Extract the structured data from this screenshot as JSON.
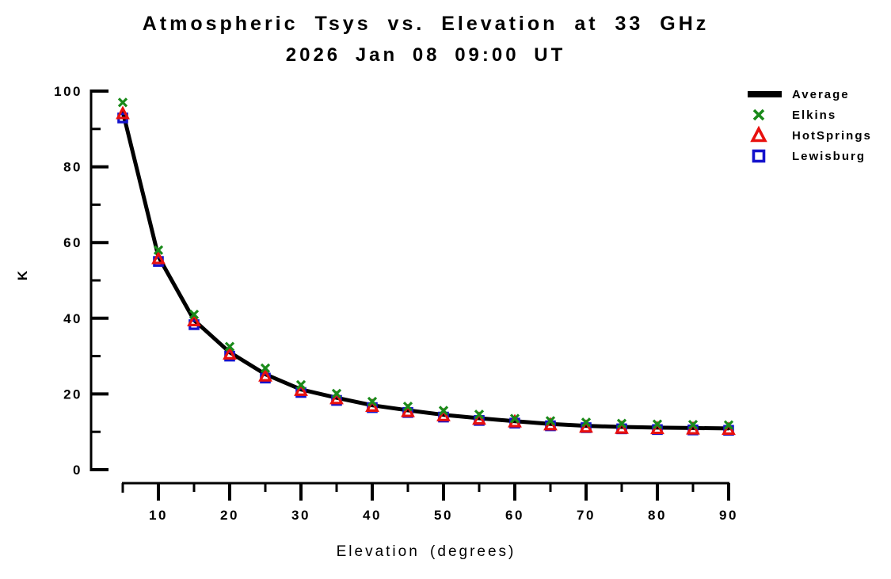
{
  "page": {
    "background": "#FFFFFF",
    "text_color": "#000000"
  },
  "chart_data": {
    "type": "line",
    "title": "Atmospheric Tsys vs. Elevation at 33 GHz",
    "subtitle": "2026 Jan 08 09:00 UT",
    "xlabel": "Elevation (degrees)",
    "ylabel": "K",
    "xlim": [
      5,
      90
    ],
    "ylim": [
      0,
      100
    ],
    "x_major_ticks": [
      10,
      20,
      30,
      40,
      50,
      60,
      70,
      80,
      90
    ],
    "x_minor_ticks": [
      5,
      15,
      25,
      35,
      45,
      55,
      65,
      75,
      85
    ],
    "y_major_ticks": [
      0,
      20,
      40,
      60,
      80,
      100
    ],
    "y_minor_ticks": [
      10,
      30,
      50,
      70,
      90
    ],
    "grid": false,
    "legend_position": "top-right",
    "x": [
      5,
      10,
      15,
      20,
      25,
      30,
      35,
      40,
      45,
      50,
      55,
      60,
      65,
      70,
      75,
      80,
      85,
      90
    ],
    "series": [
      {
        "name": "Average",
        "style": "line",
        "marker": "thick-line",
        "color": "#000000",
        "values": [
          94.6,
          56.3,
          39.5,
          31.0,
          25.2,
          21.2,
          19.0,
          17.0,
          15.7,
          14.5,
          13.6,
          12.8,
          12.1,
          11.6,
          11.3,
          11.1,
          11.0,
          10.9
        ]
      },
      {
        "name": "Elkins",
        "style": "scatter",
        "marker": "x",
        "color": "#1A8A1A",
        "values": [
          97.0,
          58.0,
          41.0,
          32.5,
          26.8,
          22.4,
          20.1,
          18.0,
          16.7,
          15.6,
          14.6,
          13.5,
          12.9,
          12.5,
          12.2,
          12.0,
          11.9,
          11.8
        ]
      },
      {
        "name": "HotSprings",
        "style": "scatter",
        "marker": "triangle-open",
        "color": "#E8100E",
        "values": [
          94.0,
          55.7,
          39.3,
          30.5,
          24.7,
          20.9,
          18.7,
          16.7,
          15.3,
          14.2,
          13.3,
          12.6,
          11.8,
          11.2,
          10.9,
          10.8,
          10.7,
          10.6
        ]
      },
      {
        "name": "Lewisburg",
        "style": "scatter",
        "marker": "square-open",
        "color": "#1412CC",
        "values": [
          92.9,
          55.0,
          38.3,
          30.0,
          24.2,
          20.4,
          18.3,
          16.4,
          15.1,
          13.9,
          13.0,
          12.3,
          11.6,
          11.1,
          10.8,
          10.6,
          10.5,
          10.4
        ]
      }
    ]
  }
}
